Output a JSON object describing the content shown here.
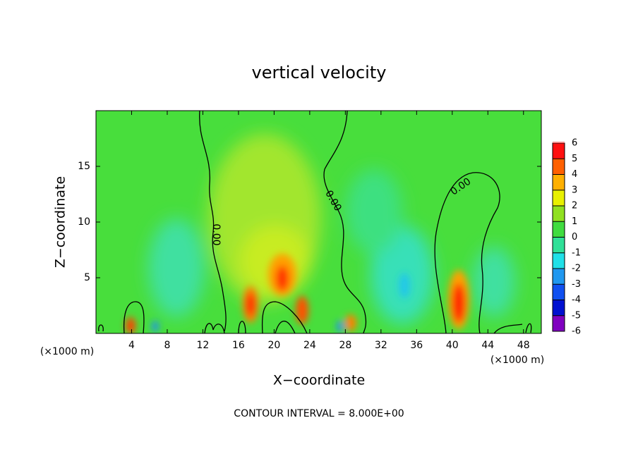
{
  "chart_data": {
    "type": "contour",
    "title": "vertical velocity",
    "xlabel": "X−coordinate",
    "ylabel": "Z−coordinate",
    "x_unit_labels": [
      "(×1000 m)",
      "(×1000 m)"
    ],
    "footer": "CONTOUR INTERVAL = 8.000E+00",
    "contour_labels": [
      "0.00",
      "0.00",
      "0.00"
    ],
    "xlim": [
      0,
      50
    ],
    "xticks": [
      4,
      8,
      12,
      16,
      20,
      24,
      28,
      32,
      36,
      40,
      44,
      48
    ],
    "ylim": [
      0,
      20
    ],
    "yticks": [
      5,
      10,
      15
    ],
    "colorbar": {
      "lim": [
        -6,
        6
      ],
      "ticks": [
        -6,
        -5,
        -4,
        -3,
        -2,
        -1,
        0,
        1,
        2,
        3,
        4,
        5,
        6
      ],
      "colors": [
        "#8000c0",
        "#0010d0",
        "#1050f0",
        "#2098f0",
        "#20e0e8",
        "#30e098",
        "#40dc40",
        "#90e020",
        "#e8f000",
        "#ffb000",
        "#ff6000",
        "#ff1010",
        "#f08a8a"
      ]
    }
  }
}
